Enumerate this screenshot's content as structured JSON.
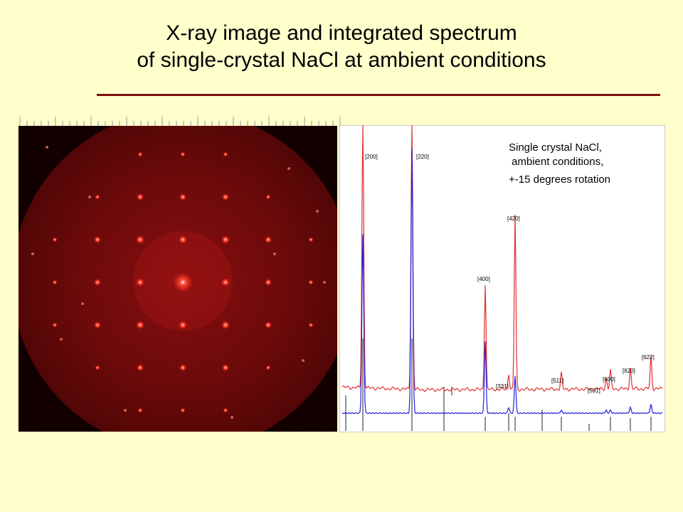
{
  "slide": {
    "title_line1": "X-ray image and integrated spectrum",
    "title_line2": "of single-crystal NaCl at ambient conditions",
    "accent_color": "#7b1010",
    "background_color": "#ffffcc"
  },
  "chart_data": {
    "type": "line",
    "annotation": [
      "Single crystal NaCl,",
      "ambient conditions,",
      "+-15 degrees rotation"
    ],
    "xlabel": "",
    "ylabel": "",
    "grid": false,
    "series": [
      {
        "color": "#e03030"
      },
      {
        "color": "#2020e0"
      }
    ],
    "peaks": [
      {
        "label": "[200]",
        "red": 1.0,
        "blue": 0.62
      },
      {
        "label": "[220]",
        "red": 1.0,
        "blue": 0.92
      },
      {
        "label": "[331]",
        "red": 0.06,
        "blue": 0.02
      },
      {
        "label": "[400]",
        "red": 0.4,
        "blue": 0.25
      },
      {
        "label": "[420]",
        "red": 0.66,
        "blue": 0.13
      },
      {
        "label": "[511]",
        "red": 0.06,
        "blue": 0.01
      },
      {
        "label": "[531]",
        "red": 0.04,
        "blue": 0.01
      },
      {
        "label": "[600]",
        "red": 0.07,
        "blue": 0.01
      },
      {
        "label": "[620]",
        "red": 0.08,
        "blue": 0.02
      },
      {
        "label": "[622]",
        "red": 0.12,
        "blue": 0.03
      }
    ]
  },
  "image": {
    "description_icon": "diffraction-pattern"
  }
}
